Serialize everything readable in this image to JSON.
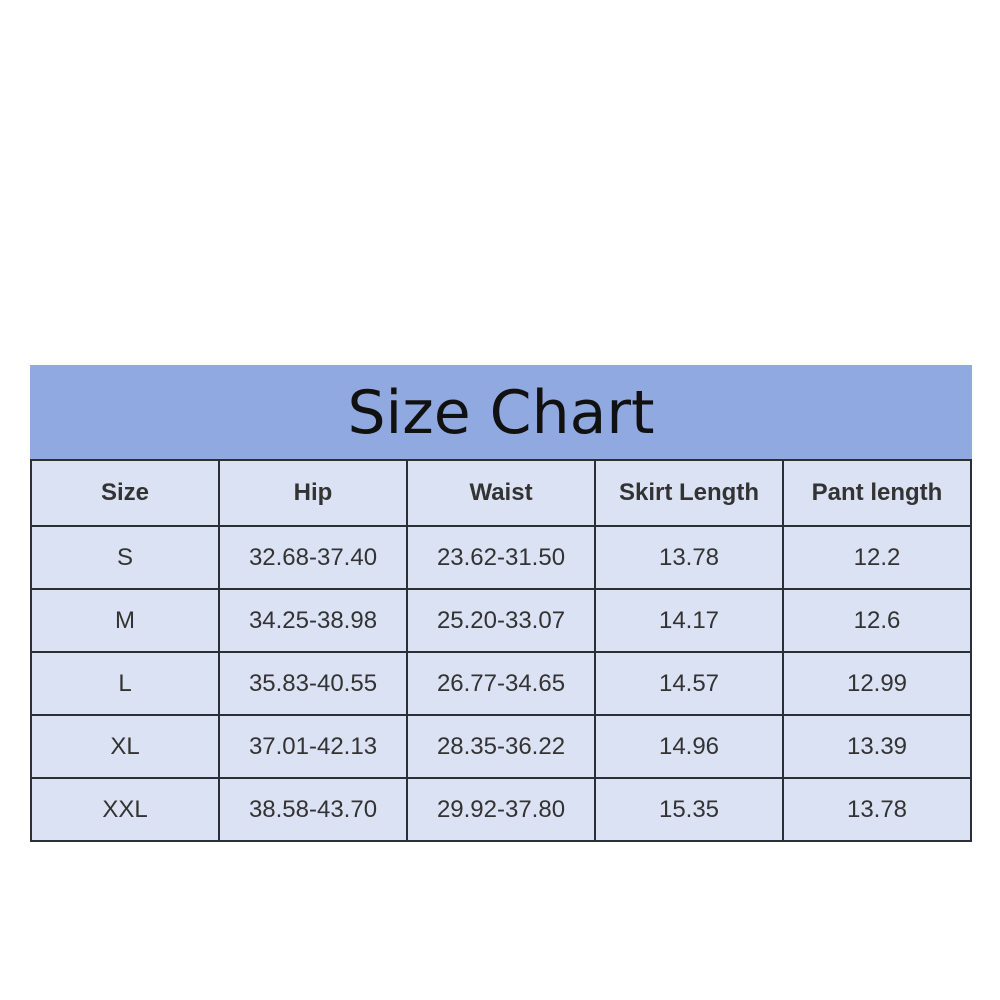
{
  "title": "Size Chart",
  "colors": {
    "banner": "#90a9e0",
    "cell": "#dbe2f4",
    "border": "#2b2f36",
    "text": "#333333"
  },
  "columns": [
    "Size",
    "Hip",
    "Waist",
    "Skirt Length",
    "Pant length"
  ],
  "rows": [
    [
      "S",
      "32.68-37.40",
      "23.62-31.50",
      "13.78",
      "12.2"
    ],
    [
      "M",
      "34.25-38.98",
      "25.20-33.07",
      "14.17",
      "12.6"
    ],
    [
      "L",
      "35.83-40.55",
      "26.77-34.65",
      "14.57",
      "12.99"
    ],
    [
      "XL",
      "37.01-42.13",
      "28.35-36.22",
      "14.96",
      "13.39"
    ],
    [
      "XXL",
      "38.58-43.70",
      "29.92-37.80",
      "15.35",
      "13.78"
    ]
  ]
}
